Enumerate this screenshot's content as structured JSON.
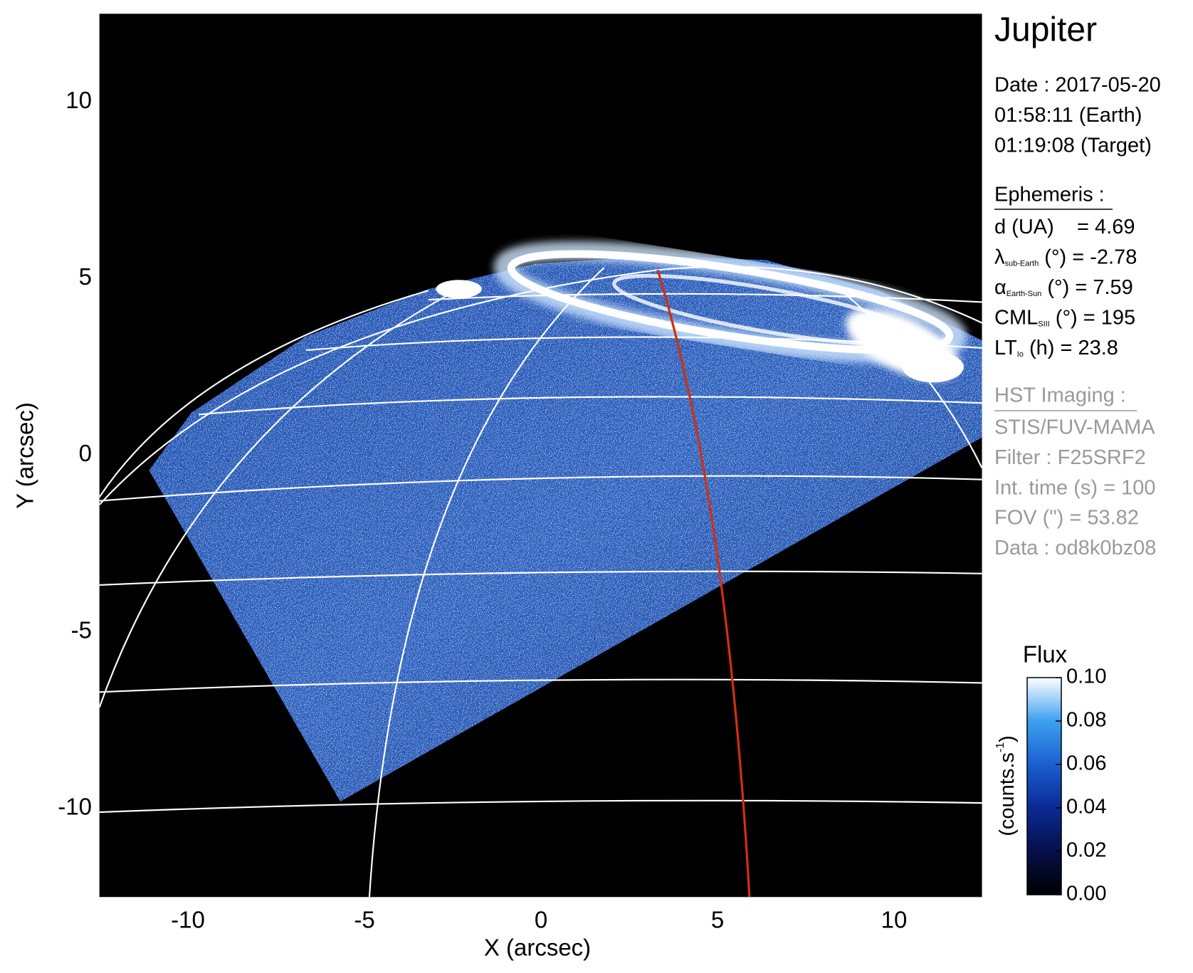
{
  "chart_data": {
    "type": "image",
    "title": "Jupiter",
    "xlabel": "X (arcsec)",
    "ylabel": "Y (arcsec)",
    "xlim": [
      -12.5,
      12.5
    ],
    "ylim": [
      -12.5,
      12.5
    ],
    "xticks": [
      -10,
      -5,
      0,
      5,
      10
    ],
    "yticks": [
      -10,
      -5,
      0,
      5,
      10
    ],
    "date": [
      "Date : 2017-05-20",
      "01:58:11 (Earth)",
      "01:19:08 (Target)"
    ],
    "ephemeris": {
      "heading": "Ephemeris :",
      "lines": [
        {
          "label": "d (UA)    = 4.69"
        },
        {
          "label": "λ",
          "sub": "sub-Earth",
          "text": " (°) = -2.78"
        },
        {
          "label": "α",
          "sub": "Earth-Sun",
          "text": " (°) = 7.59"
        },
        {
          "label": "CML",
          "sub": "SIII",
          "text": " (°) = 195"
        },
        {
          "label": "LT",
          "sub": "Io",
          "text": " (h) = 23.8"
        }
      ]
    },
    "imaging": {
      "heading": "HST Imaging :",
      "lines": [
        "STIS/FUV-MAMA",
        "Filter : F25SRF2",
        "Int. time (s) = 100",
        "FOV (\") = 53.82",
        "Data : od8k0bz08"
      ]
    },
    "colorbar": {
      "title": "Flux",
      "label": "(counts.s",
      "label_sup": "-1",
      "label_end": ")",
      "lim": [
        0,
        0.1
      ],
      "ticks": [
        {
          "value": 0,
          "label": "0.00"
        },
        {
          "value": 0.02,
          "label": "0.02"
        },
        {
          "value": 0.04,
          "label": "0.04"
        },
        {
          "value": 0.06,
          "label": "0.06"
        },
        {
          "value": 0.08,
          "label": "0.08"
        },
        {
          "value": 0.1,
          "label": "0.10"
        }
      ]
    }
  }
}
